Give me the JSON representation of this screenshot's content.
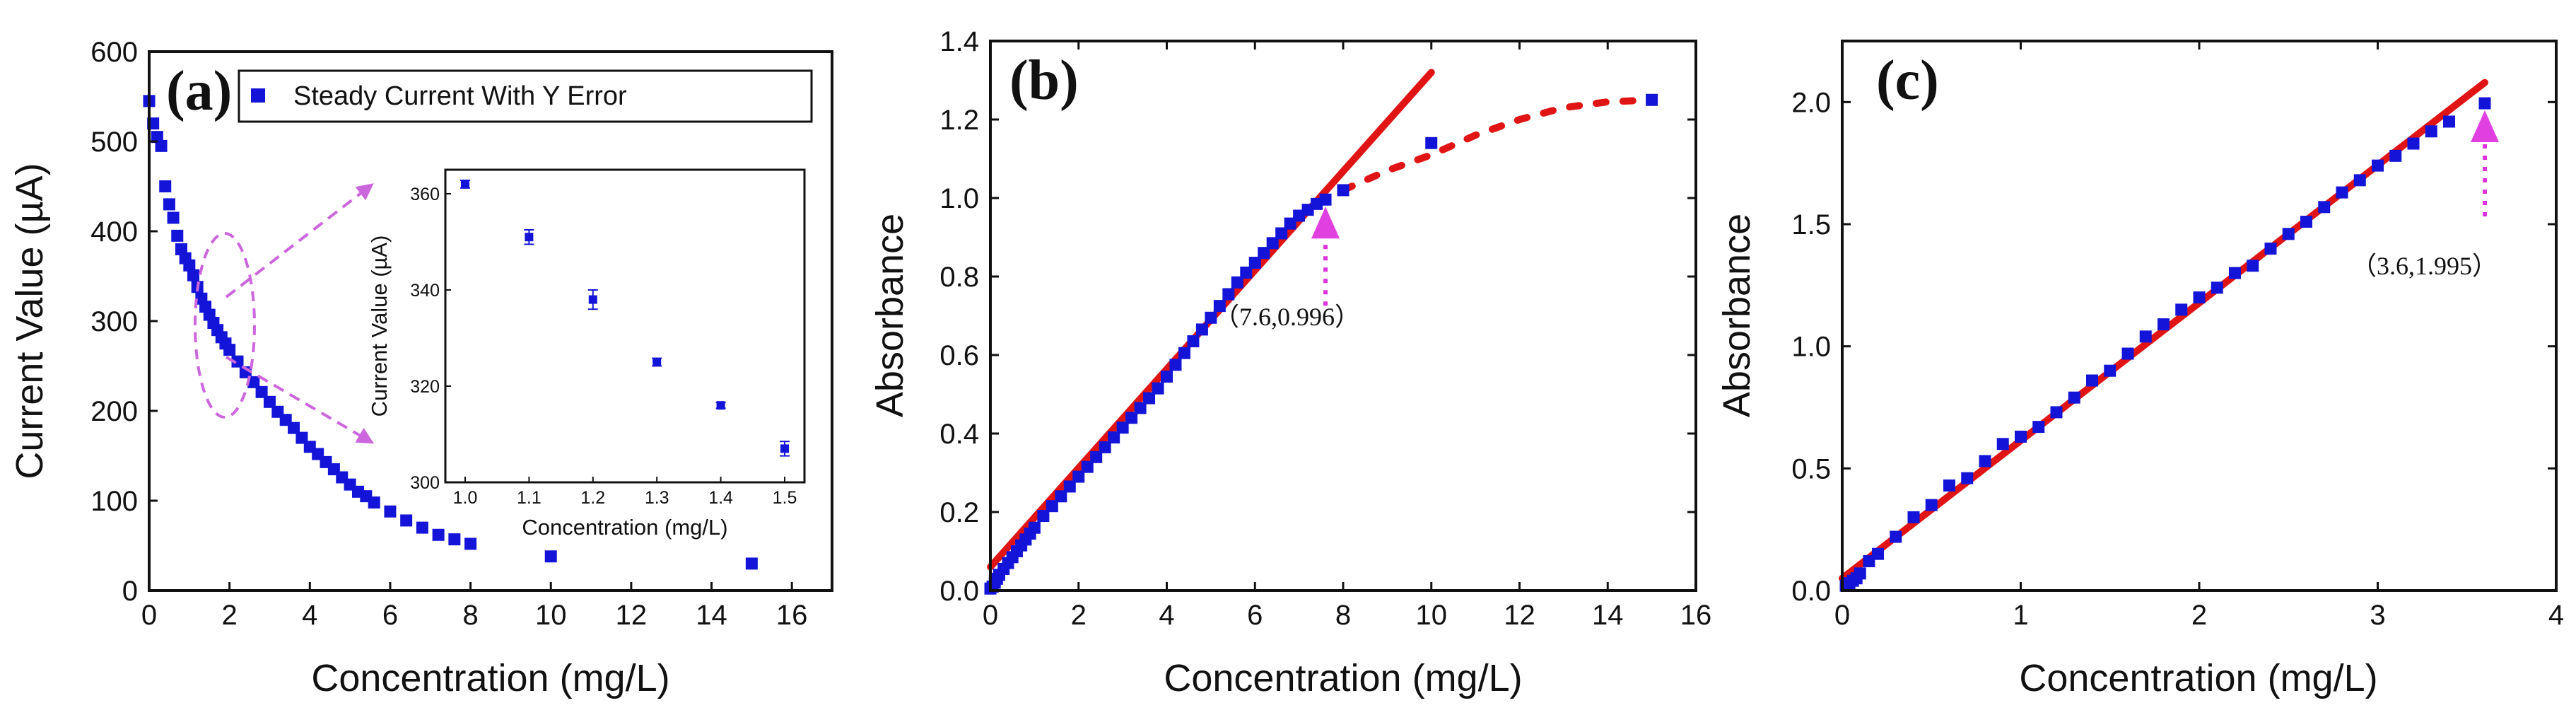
{
  "chart_data": [
    {
      "type": "scatter",
      "panel": "(a)",
      "xlabel": "Concentration (mg/L)",
      "ylabel": "Current Value (µA)",
      "xlim": [
        0,
        17
      ],
      "ylim": [
        0,
        600
      ],
      "xticks": [
        "0",
        "2",
        "4",
        "6",
        "8",
        "10",
        "12",
        "14",
        "16"
      ],
      "yticks": [
        "0",
        "100",
        "200",
        "300",
        "400",
        "500",
        "600"
      ],
      "legend": "Steady Current With Y Error",
      "legend_position": "top-right",
      "marker_color": "#1414d8",
      "series": [
        {
          "name": "Steady Current With Y Error",
          "x": [
            0,
            0.1,
            0.2,
            0.3,
            0.4,
            0.5,
            0.6,
            0.7,
            0.8,
            0.9,
            1.0,
            1.1,
            1.2,
            1.3,
            1.4,
            1.5,
            1.6,
            1.7,
            1.8,
            1.9,
            2.0,
            2.2,
            2.4,
            2.6,
            2.8,
            3.0,
            3.2,
            3.4,
            3.6,
            3.8,
            4.0,
            4.2,
            4.4,
            4.6,
            4.8,
            5.0,
            5.2,
            5.4,
            5.6,
            6.0,
            6.4,
            6.8,
            7.2,
            7.6,
            8.0,
            10.0,
            15.0
          ],
          "y": [
            545,
            520,
            505,
            495,
            450,
            430,
            415,
            395,
            380,
            370,
            362,
            351,
            338,
            325,
            316,
            307,
            298,
            290,
            282,
            275,
            268,
            255,
            243,
            232,
            221,
            210,
            199,
            190,
            181,
            170,
            160,
            152,
            143,
            135,
            126,
            118,
            110,
            105,
            98,
            88,
            78,
            70,
            62,
            57,
            52,
            38,
            30
          ]
        }
      ],
      "inset": {
        "xlabel": "Concentration (mg/L)",
        "ylabel": "Current Value (µA)",
        "xlim": [
          1.0,
          1.5
        ],
        "ylim": [
          300,
          365
        ],
        "xticks": [
          "1.0",
          "1.1",
          "1.2",
          "1.3",
          "1.4",
          "1.5"
        ],
        "yticks": [
          "300",
          "320",
          "340",
          "360"
        ],
        "x": [
          1.0,
          1.1,
          1.2,
          1.3,
          1.4,
          1.5
        ],
        "y": [
          362,
          351,
          338,
          325,
          316,
          307
        ],
        "err": [
          0.8,
          1.5,
          2.0,
          0.8,
          0.6,
          1.5
        ]
      }
    },
    {
      "type": "scatter",
      "panel": "(b)",
      "xlabel": "Concentration (mg/L)",
      "ylabel": "Absorbance",
      "xlim": [
        0,
        16
      ],
      "ylim": [
        0,
        1.4
      ],
      "xticks": [
        "0",
        "2",
        "4",
        "6",
        "8",
        "10",
        "12",
        "14",
        "16"
      ],
      "yticks": [
        "0.0",
        "0.2",
        "0.4",
        "0.6",
        "0.8",
        "1.0",
        "1.2",
        "1.4"
      ],
      "marker_color": "#1414d8",
      "fit_color": "#e01414",
      "series": [
        {
          "name": "Absorbance",
          "x": [
            0,
            0.05,
            0.1,
            0.15,
            0.2,
            0.3,
            0.4,
            0.5,
            0.6,
            0.7,
            0.8,
            0.9,
            1.0,
            1.2,
            1.4,
            1.6,
            1.8,
            2.0,
            2.2,
            2.4,
            2.6,
            2.8,
            3.0,
            3.2,
            3.4,
            3.6,
            3.8,
            4.0,
            4.2,
            4.4,
            4.6,
            4.8,
            5.0,
            5.2,
            5.4,
            5.6,
            5.8,
            6.0,
            6.2,
            6.4,
            6.6,
            6.8,
            7.0,
            7.2,
            7.4,
            7.6,
            8.0,
            10.0,
            15.0
          ],
          "y": [
            0.005,
            0.01,
            0.02,
            0.03,
            0.04,
            0.055,
            0.07,
            0.085,
            0.1,
            0.115,
            0.13,
            0.145,
            0.16,
            0.19,
            0.215,
            0.24,
            0.265,
            0.29,
            0.315,
            0.34,
            0.365,
            0.39,
            0.415,
            0.44,
            0.465,
            0.49,
            0.515,
            0.545,
            0.575,
            0.605,
            0.635,
            0.665,
            0.695,
            0.725,
            0.755,
            0.785,
            0.81,
            0.835,
            0.86,
            0.885,
            0.91,
            0.935,
            0.955,
            0.97,
            0.985,
            0.996,
            1.02,
            1.14,
            1.25
          ]
        }
      ],
      "fit_line": {
        "x": [
          0,
          10
        ],
        "y": [
          0.06,
          1.32
        ]
      },
      "saturation_curve": {
        "x": [
          8,
          9,
          10,
          11,
          12,
          13,
          14,
          15
        ],
        "y": [
          1.02,
          1.07,
          1.11,
          1.16,
          1.2,
          1.23,
          1.245,
          1.25
        ]
      },
      "annotation": {
        "text": "（7.6,0.996）",
        "x": 7.6,
        "y": 0.996
      }
    },
    {
      "type": "scatter",
      "panel": "(c)",
      "xlabel": "Concentration (mg/L)",
      "ylabel": "Absorbance",
      "xlim": [
        0,
        4
      ],
      "ylim": [
        0,
        2.25
      ],
      "xticks": [
        "0",
        "1",
        "2",
        "3",
        "4"
      ],
      "yticks": [
        "0.0",
        "0.5",
        "1.0",
        "1.5",
        "2.0"
      ],
      "marker_color": "#1414d8",
      "fit_color": "#e01414",
      "series": [
        {
          "name": "Absorbance",
          "x": [
            0.02,
            0.04,
            0.06,
            0.08,
            0.1,
            0.15,
            0.2,
            0.3,
            0.4,
            0.5,
            0.6,
            0.7,
            0.8,
            0.9,
            1.0,
            1.1,
            1.2,
            1.3,
            1.4,
            1.5,
            1.6,
            1.7,
            1.8,
            1.9,
            2.0,
            2.1,
            2.2,
            2.3,
            2.4,
            2.5,
            2.6,
            2.7,
            2.8,
            2.9,
            3.0,
            3.1,
            3.2,
            3.3,
            3.4,
            3.6
          ],
          "y": [
            0.02,
            0.03,
            0.04,
            0.05,
            0.07,
            0.12,
            0.15,
            0.22,
            0.3,
            0.35,
            0.43,
            0.46,
            0.53,
            0.6,
            0.63,
            0.67,
            0.73,
            0.79,
            0.86,
            0.9,
            0.97,
            1.04,
            1.09,
            1.15,
            1.2,
            1.24,
            1.3,
            1.33,
            1.4,
            1.46,
            1.51,
            1.57,
            1.63,
            1.68,
            1.74,
            1.78,
            1.83,
            1.88,
            1.92,
            1.995
          ]
        }
      ],
      "fit_line": {
        "x": [
          0,
          3.6
        ],
        "y": [
          0.05,
          2.08
        ]
      },
      "annotation": {
        "text": "（3.6,1.995）",
        "x": 3.6,
        "y": 1.995
      }
    }
  ]
}
